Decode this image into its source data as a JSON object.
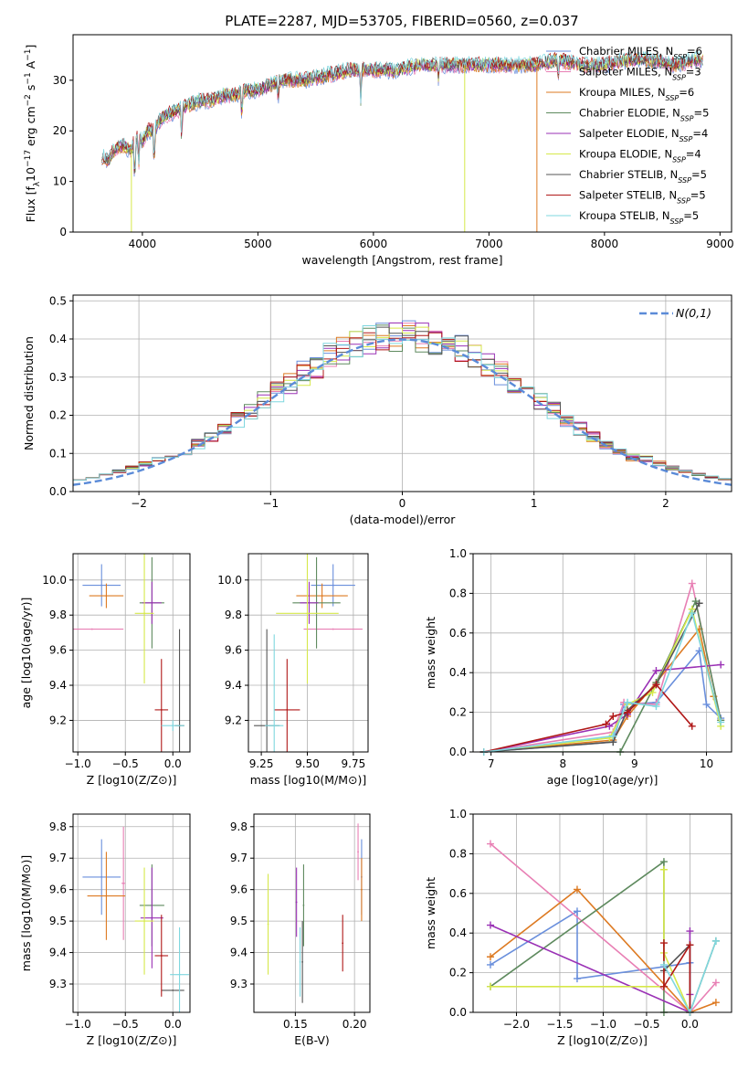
{
  "figure": {
    "title": "PLATE=2287, MJD=53705, FIBERID=0560, z=0.037"
  },
  "models": [
    {
      "name": "Chabrier MILES",
      "nssp": "6",
      "color": "#6a8fdc"
    },
    {
      "name": "Salpeter MILES",
      "nssp": "3",
      "color": "#e87fb4"
    },
    {
      "name": "Kroupa MILES",
      "nssp": "6",
      "color": "#dd7a22"
    },
    {
      "name": "Chabrier ELODIE",
      "nssp": "5",
      "color": "#5e8a5e"
    },
    {
      "name": "Salpeter ELODIE",
      "nssp": "4",
      "color": "#9a31b5"
    },
    {
      "name": "Kroupa ELODIE",
      "nssp": "4",
      "color": "#d6e84a"
    },
    {
      "name": "Chabrier STELIB",
      "nssp": "5",
      "color": "#555555"
    },
    {
      "name": "Salpeter STELIB",
      "nssp": "5",
      "color": "#b01818"
    },
    {
      "name": "Kroupa STELIB",
      "nssp": "5",
      "color": "#7fd7df"
    }
  ],
  "chart_data": [
    {
      "id": "spectrum",
      "type": "line",
      "xlabel": "wavelength [Angstrom, rest frame]",
      "ylabel_parts": [
        "Flux [f",
        "λ",
        "10",
        "−17",
        " erg cm",
        "−2",
        " s",
        "−1",
        " A",
        "−1",
        "]"
      ],
      "xlim": [
        3400,
        9100
      ],
      "ylim": [
        0,
        39
      ],
      "xticks": [
        4000,
        5000,
        6000,
        7000,
        8000,
        9000
      ],
      "yticks": [
        0,
        10,
        20,
        30
      ],
      "series": [
        {
          "x": [
            3650,
            3700,
            3750,
            3800,
            3850,
            3900,
            3950,
            4000,
            4050,
            4100,
            4150,
            4200,
            4300,
            4400,
            4500,
            4600,
            4700,
            4800,
            4900,
            5000,
            5200,
            5400,
            5600,
            5800,
            6000,
            6200,
            6400,
            6600,
            6800,
            7000,
            7200,
            7400,
            7600,
            7800,
            8000,
            8200,
            8400,
            8600,
            8800
          ],
          "y": [
            15,
            14,
            16,
            17,
            17,
            16,
            19,
            18,
            20,
            20,
            22,
            23,
            24,
            25,
            26,
            26,
            27,
            27,
            28,
            28,
            30,
            30,
            31,
            32,
            32,
            32,
            33,
            33,
            33,
            33,
            33,
            33,
            34,
            33,
            33,
            34,
            34,
            33,
            34
          ]
        }
      ],
      "spikes": [
        {
          "x": 3905,
          "y": 0,
          "color": "#d6e84a"
        },
        {
          "x": 6790,
          "y": 0,
          "color": "#d6e84a"
        },
        {
          "x": 7415,
          "y": 0,
          "color": "#dd7a22"
        }
      ],
      "legend": "top-right"
    },
    {
      "id": "residuals",
      "type": "bar",
      "xlabel": "(data-model)/error",
      "ylabel": "Normed distribution",
      "xlim": [
        -2.5,
        2.5
      ],
      "ylim": [
        0,
        0.515
      ],
      "xticks": [
        -2,
        -1,
        0,
        1,
        2
      ],
      "xtick_labels": [
        "−2",
        "−1",
        "0",
        "1",
        "2"
      ],
      "yticks": [
        0,
        0.1,
        0.2,
        0.3,
        0.4,
        0.5
      ],
      "ytick_labels": [
        "0.0",
        "0.1",
        "0.2",
        "0.3",
        "0.4",
        "0.5"
      ],
      "bin_width": 0.1,
      "reference": {
        "name": "N(0,1)",
        "sigma": 1
      },
      "legend": "top-right"
    },
    {
      "id": "age-vs-z",
      "type": "scatter",
      "xlabel": "Z [log10(Z/Z⊙)]",
      "ylabel": "age [log10(age/yr)]",
      "xlim": [
        -1.05,
        0.18
      ],
      "ylim": [
        9.02,
        10.15
      ],
      "xticks": [
        -1.0,
        -0.5,
        0.0
      ],
      "xtick_labels": [
        "−1.0",
        "−0.5",
        "0.0"
      ],
      "yticks": [
        9.2,
        9.4,
        9.6,
        9.8,
        10.0
      ],
      "ytick_labels": [
        "9.2",
        "9.4",
        "9.6",
        "9.8",
        "10.0"
      ],
      "points": [
        {
          "model": 0,
          "x": -0.75,
          "y": 9.97,
          "xerr": 0.2,
          "yerr": 0.12
        },
        {
          "model": 1,
          "x": -0.85,
          "y": 9.72,
          "xerr": 0.33,
          "yerr": 0.0
        },
        {
          "model": 2,
          "x": -0.7,
          "y": 9.91,
          "xerr": 0.18,
          "yerr": 0.07
        },
        {
          "model": 3,
          "x": -0.22,
          "y": 9.87,
          "xerr": 0.13,
          "yerr": 0.26
        },
        {
          "model": 4,
          "x": -0.22,
          "y": 9.87,
          "xerr": 0.1,
          "yerr": 0.12
        },
        {
          "model": 5,
          "x": -0.3,
          "y": 9.81,
          "xerr": 0.1,
          "yerr": 0.4
        },
        {
          "model": 6,
          "x": 0.07,
          "y": 9.17,
          "xerr": 0.05,
          "yerr": 0.55
        },
        {
          "model": 7,
          "x": -0.12,
          "y": 9.26,
          "xerr": 0.07,
          "yerr": 0.29
        },
        {
          "model": 8,
          "x": 0.0,
          "y": 9.17,
          "xerr": 0.12,
          "yerr": 0.03
        }
      ]
    },
    {
      "id": "age-vs-mass",
      "type": "scatter",
      "xlabel": "mass [log10(M/M⊙)]",
      "ylabel": "",
      "xlim": [
        9.18,
        9.83
      ],
      "ylim": [
        9.02,
        10.15
      ],
      "xticks": [
        9.25,
        9.5,
        9.75
      ],
      "xtick_labels": [
        "9.25",
        "9.50",
        "9.75"
      ],
      "yticks": [
        9.2,
        9.4,
        9.6,
        9.8,
        10.0
      ],
      "ytick_labels": [
        "9.2",
        "9.4",
        "9.6",
        "9.8",
        "10.0"
      ],
      "points": [
        {
          "model": 0,
          "x": 9.64,
          "y": 9.97,
          "xerr": 0.12,
          "yerr": 0.12
        },
        {
          "model": 1,
          "x": 9.64,
          "y": 9.72,
          "xerr": 0.16,
          "yerr": 0.0
        },
        {
          "model": 2,
          "x": 9.58,
          "y": 9.91,
          "xerr": 0.14,
          "yerr": 0.07
        },
        {
          "model": 3,
          "x": 9.55,
          "y": 9.87,
          "xerr": 0.13,
          "yerr": 0.26
        },
        {
          "model": 4,
          "x": 9.51,
          "y": 9.87,
          "xerr": 0.05,
          "yerr": 0.12
        },
        {
          "model": 5,
          "x": 9.5,
          "y": 9.81,
          "xerr": 0.17,
          "yerr": 0.4
        },
        {
          "model": 6,
          "x": 9.28,
          "y": 9.17,
          "xerr": 0.07,
          "yerr": 0.55
        },
        {
          "model": 7,
          "x": 9.39,
          "y": 9.26,
          "xerr": 0.07,
          "yerr": 0.29
        },
        {
          "model": 8,
          "x": 9.32,
          "y": 9.17,
          "xerr": 0.05,
          "yerr": 0.52
        }
      ]
    },
    {
      "id": "mass-weight-vs-age",
      "type": "line",
      "xlabel": "age [log10(age/yr)]",
      "ylabel": "mass weight",
      "xlim": [
        6.75,
        10.35
      ],
      "ylim": [
        0,
        1
      ],
      "xticks": [
        7,
        8,
        9,
        10
      ],
      "xtick_labels": [
        "7",
        "8",
        "9",
        "10"
      ],
      "yticks": [
        0,
        0.2,
        0.4,
        0.6,
        0.8,
        1.0
      ],
      "ytick_labels": [
        "0.0",
        "0.2",
        "0.4",
        "0.6",
        "0.8",
        "1.0"
      ],
      "series": [
        {
          "model": 0,
          "x": [
            6.9,
            8.7,
            8.85,
            9.3,
            9.9,
            10.0,
            10.2
          ],
          "y": [
            0.0,
            0.05,
            0.24,
            0.25,
            0.51,
            0.24,
            0.17
          ]
        },
        {
          "model": 1,
          "x": [
            6.9,
            8.7,
            8.85,
            9.3,
            9.8,
            10.2
          ],
          "y": [
            0.0,
            0.1,
            0.25,
            0.24,
            0.85,
            0.16
          ]
        },
        {
          "model": 2,
          "x": [
            6.9,
            8.7,
            8.9,
            9.3,
            9.9,
            10.1
          ],
          "y": [
            0.0,
            0.06,
            0.18,
            0.35,
            0.62,
            0.28
          ]
        },
        {
          "model": 3,
          "x": [
            6.9,
            8.8,
            9.3,
            9.85,
            10.2
          ],
          "y": [
            0.0,
            0.0,
            0.35,
            0.76,
            0.16
          ]
        },
        {
          "model": 4,
          "x": [
            6.9,
            8.65,
            8.9,
            9.3,
            10.2
          ],
          "y": [
            0.0,
            0.13,
            0.19,
            0.41,
            0.44
          ]
        },
        {
          "model": 5,
          "x": [
            6.9,
            8.65,
            8.9,
            9.25,
            9.8,
            10.2
          ],
          "y": [
            0.0,
            0.07,
            0.24,
            0.3,
            0.72,
            0.13
          ]
        },
        {
          "model": 6,
          "x": [
            6.9,
            8.7,
            8.9,
            9.3,
            9.9
          ],
          "y": [
            0.0,
            0.05,
            0.21,
            0.34,
            0.75
          ]
        },
        {
          "model": 7,
          "x": [
            6.9,
            8.6,
            8.7,
            8.9,
            9.3,
            9.8
          ],
          "y": [
            0.0,
            0.14,
            0.18,
            0.2,
            0.34,
            0.13
          ]
        },
        {
          "model": 8,
          "x": [
            6.9,
            8.7,
            8.9,
            9.3,
            9.8,
            10.2
          ],
          "y": [
            0.0,
            0.08,
            0.25,
            0.23,
            0.7,
            0.15
          ]
        }
      ]
    },
    {
      "id": "mass-vs-z",
      "type": "scatter",
      "xlabel": "Z [log10(Z/Z⊙)]",
      "ylabel": "mass [log10(M/M⊙)]",
      "xlim": [
        -1.05,
        0.18
      ],
      "ylim": [
        9.21,
        9.84
      ],
      "xticks": [
        -1.0,
        -0.5,
        0.0
      ],
      "xtick_labels": [
        "−1.0",
        "−0.5",
        "0.0"
      ],
      "yticks": [
        9.3,
        9.4,
        9.5,
        9.6,
        9.7,
        9.8
      ],
      "ytick_labels": [
        "9.3",
        "9.4",
        "9.5",
        "9.6",
        "9.7",
        "9.8"
      ],
      "points": [
        {
          "model": 0,
          "x": -0.75,
          "y": 9.64,
          "xerr": 0.2,
          "yerr": 0.12
        },
        {
          "model": 1,
          "x": -0.52,
          "y": 9.62,
          "xerr": 0.02,
          "yerr": 0.18
        },
        {
          "model": 2,
          "x": -0.7,
          "y": 9.58,
          "xerr": 0.2,
          "yerr": 0.14
        },
        {
          "model": 3,
          "x": -0.22,
          "y": 9.55,
          "xerr": 0.13,
          "yerr": 0.13
        },
        {
          "model": 4,
          "x": -0.22,
          "y": 9.51,
          "xerr": 0.12,
          "yerr": 0.16
        },
        {
          "model": 5,
          "x": -0.3,
          "y": 9.5,
          "xerr": 0.1,
          "yerr": 0.17
        },
        {
          "model": 6,
          "x": 0.0,
          "y": 9.28,
          "xerr": 0.12,
          "yerr": 0.0
        },
        {
          "model": 7,
          "x": -0.12,
          "y": 9.39,
          "xerr": 0.07,
          "yerr": 0.13
        },
        {
          "model": 8,
          "x": 0.07,
          "y": 9.33,
          "xerr": 0.1,
          "yerr": 0.15
        }
      ]
    },
    {
      "id": "mass-vs-ebv",
      "type": "scatter",
      "xlabel": "E(B-V)",
      "ylabel": "",
      "xlim": [
        0.115,
        0.213
      ],
      "ylim": [
        9.21,
        9.84
      ],
      "xticks": [
        0.15,
        0.2
      ],
      "xtick_labels": [
        "0.15",
        "0.20"
      ],
      "yticks": [
        9.3,
        9.4,
        9.5,
        9.6,
        9.7,
        9.8
      ],
      "ytick_labels": [
        "9.3",
        "9.4",
        "9.5",
        "9.6",
        "9.7",
        "9.8"
      ],
      "points": [
        {
          "model": 0,
          "x": 0.206,
          "y": 9.64,
          "xerr": 0,
          "yerr": 0.12
        },
        {
          "model": 1,
          "x": 0.203,
          "y": 9.72,
          "xerr": 0,
          "yerr": 0.09
        },
        {
          "model": 2,
          "x": 0.206,
          "y": 9.6,
          "xerr": 0,
          "yerr": 0.1
        },
        {
          "model": 3,
          "x": 0.157,
          "y": 9.55,
          "xerr": 0,
          "yerr": 0.13
        },
        {
          "model": 4,
          "x": 0.151,
          "y": 9.56,
          "xerr": 0,
          "yerr": 0.11
        },
        {
          "model": 5,
          "x": 0.127,
          "y": 9.49,
          "xerr": 0,
          "yerr": 0.16
        },
        {
          "model": 6,
          "x": 0.156,
          "y": 9.37,
          "xerr": 0,
          "yerr": 0.13
        },
        {
          "model": 7,
          "x": 0.19,
          "y": 9.43,
          "xerr": 0,
          "yerr": 0.09
        },
        {
          "model": 8,
          "x": 0.154,
          "y": 9.37,
          "xerr": 0,
          "yerr": 0.11
        }
      ]
    },
    {
      "id": "mass-weight-vs-z",
      "type": "line",
      "xlabel": "Z [log10(Z/Z⊙)]",
      "ylabel": "mass weight",
      "xlim": [
        -2.5,
        0.48
      ],
      "ylim": [
        0,
        1
      ],
      "xticks": [
        -2.0,
        -1.5,
        -1.0,
        -0.5,
        0.0
      ],
      "xtick_labels": [
        "−2.0",
        "−1.5",
        "−1.0",
        "−0.5",
        "0.0"
      ],
      "yticks": [
        0,
        0.2,
        0.4,
        0.6,
        0.8,
        1.0
      ],
      "ytick_labels": [
        "0.0",
        "0.2",
        "0.4",
        "0.6",
        "0.8",
        "1.0"
      ],
      "series": [
        {
          "model": 0,
          "x": [
            -2.3,
            -1.3,
            -1.3,
            -0.3,
            0.0,
            0.0
          ],
          "y": [
            0.24,
            0.51,
            0.17,
            0.23,
            0.25,
            0.0
          ]
        },
        {
          "model": 1,
          "x": [
            -2.3,
            0.0,
            0.3
          ],
          "y": [
            0.85,
            0.0,
            0.15
          ]
        },
        {
          "model": 2,
          "x": [
            -2.3,
            -1.3,
            0.0,
            0.3
          ],
          "y": [
            0.28,
            0.62,
            0.0,
            0.05
          ]
        },
        {
          "model": 3,
          "x": [
            -2.3,
            -0.3,
            -0.3,
            0.0,
            0.3
          ],
          "y": [
            0.13,
            0.76,
            0.0,
            0.0,
            0.36
          ]
        },
        {
          "model": 4,
          "x": [
            -2.3,
            0.0,
            0.0,
            0.0
          ],
          "y": [
            0.44,
            0.0,
            0.41,
            0.09
          ]
        },
        {
          "model": 5,
          "x": [
            -2.3,
            -0.3,
            -0.3,
            -0.3,
            0.0
          ],
          "y": [
            0.13,
            0.13,
            0.72,
            0.3,
            0.0
          ]
        },
        {
          "model": 6,
          "x": [
            -0.3,
            0.0,
            0.0
          ],
          "y": [
            0.21,
            0.34,
            0.0
          ]
        },
        {
          "model": 7,
          "x": [
            -0.3,
            -0.3,
            0.0,
            0.0
          ],
          "y": [
            0.35,
            0.13,
            0.34,
            0.0
          ]
        },
        {
          "model": 8,
          "x": [
            -0.3,
            0.0,
            0.3
          ],
          "y": [
            0.24,
            0.0,
            0.36
          ]
        }
      ]
    }
  ]
}
